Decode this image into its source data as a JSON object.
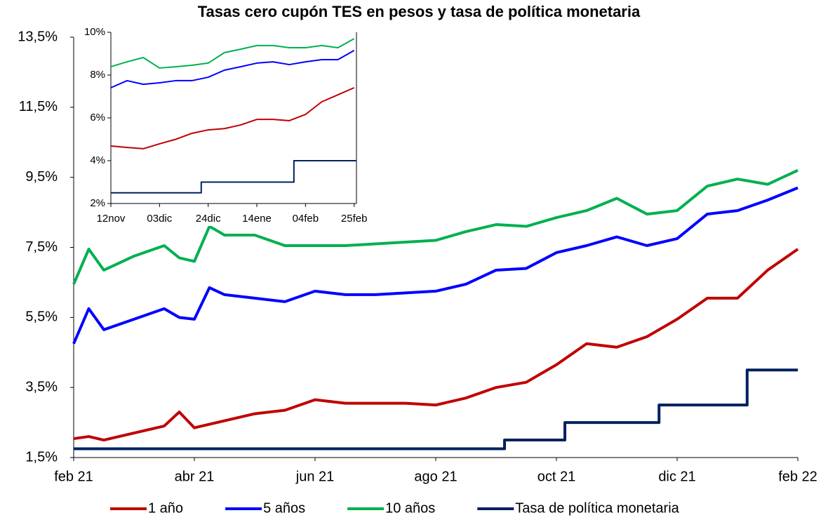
{
  "chart_data": [
    {
      "type": "line",
      "title": "Tasas cero cupón TES en pesos y tasa de política monetaria",
      "x": [
        0,
        0.25,
        0.5,
        1,
        1.5,
        1.75,
        2,
        2.25,
        2.5,
        3,
        3.5,
        4,
        4.5,
        5,
        5.5,
        6,
        6.5,
        7,
        7.5,
        8,
        8.5,
        9,
        9.5,
        10,
        10.5,
        11,
        11.5,
        12
      ],
      "xlim": [
        0,
        12
      ],
      "xticks": [
        {
          "value": 0,
          "label": "feb 21"
        },
        {
          "value": 2,
          "label": "abr 21"
        },
        {
          "value": 4,
          "label": "jun 21"
        },
        {
          "value": 6,
          "label": "ago 21"
        },
        {
          "value": 8,
          "label": "oct 21"
        },
        {
          "value": 10,
          "label": "dic 21"
        },
        {
          "value": 12,
          "label": "feb 22"
        }
      ],
      "ylim": [
        1.5,
        13.5
      ],
      "yticks": [
        {
          "value": 1.5,
          "label": "1,5%"
        },
        {
          "value": 3.5,
          "label": "3,5%"
        },
        {
          "value": 5.5,
          "label": "5,5%"
        },
        {
          "value": 7.5,
          "label": "7,5%"
        },
        {
          "value": 9.5,
          "label": "9,5%"
        },
        {
          "value": 11.5,
          "label": "11,5%"
        },
        {
          "value": 13.5,
          "label": "13,5%"
        }
      ],
      "legend": "bottom",
      "series": [
        {
          "name": "1 año",
          "color": "#c00000",
          "values": [
            2.04,
            2.1,
            2.0,
            2.2,
            2.4,
            2.8,
            2.35,
            2.45,
            2.55,
            2.75,
            2.85,
            3.15,
            3.05,
            3.05,
            3.05,
            3.0,
            3.2,
            3.5,
            3.65,
            4.15,
            4.75,
            4.65,
            4.95,
            5.45,
            6.05,
            6.05,
            6.85,
            7.45
          ]
        },
        {
          "name": "5 años",
          "color": "#0000ff",
          "values": [
            4.75,
            5.75,
            5.15,
            5.45,
            5.75,
            5.5,
            5.45,
            6.35,
            6.15,
            6.05,
            5.95,
            6.25,
            6.15,
            6.15,
            6.2,
            6.25,
            6.45,
            6.85,
            6.9,
            7.35,
            7.55,
            7.8,
            7.55,
            7.75,
            8.45,
            8.55,
            8.85,
            9.2
          ]
        },
        {
          "name": "10 años",
          "color": "#00b050",
          "values": [
            6.45,
            7.45,
            6.85,
            7.25,
            7.55,
            7.2,
            7.1,
            8.1,
            7.85,
            7.85,
            7.55,
            7.55,
            7.55,
            7.6,
            7.65,
            7.7,
            7.95,
            8.15,
            8.1,
            8.35,
            8.55,
            8.9,
            8.45,
            8.55,
            9.25,
            9.45,
            9.3,
            9.7
          ]
        },
        {
          "name": "Tasa de política monetaria",
          "color": "#002060",
          "x": [
            0,
            7.14,
            7.14,
            8.14,
            8.14,
            9.7,
            9.7,
            11.16,
            11.16,
            12
          ],
          "values": [
            1.75,
            1.75,
            2,
            2,
            2.5,
            2.5,
            3,
            3,
            4,
            4
          ]
        }
      ]
    },
    {
      "type": "line",
      "x": [
        0,
        7,
        14,
        21,
        28,
        35,
        42,
        49,
        56,
        63,
        70,
        77,
        84,
        91,
        98,
        105
      ],
      "xlim": [
        0,
        106
      ],
      "xticks": [
        {
          "value": 0,
          "label": "12nov"
        },
        {
          "value": 21,
          "label": "03dic"
        },
        {
          "value": 42,
          "label": "24dic"
        },
        {
          "value": 63,
          "label": "14ene"
        },
        {
          "value": 84,
          "label": "04feb"
        },
        {
          "value": 105,
          "label": "25feb"
        }
      ],
      "ylim": [
        2,
        10
      ],
      "yticks": [
        {
          "value": 2,
          "label": "2%"
        },
        {
          "value": 4,
          "label": "4%"
        },
        {
          "value": 6,
          "label": "6%"
        },
        {
          "value": 8,
          "label": "8%"
        },
        {
          "value": 10,
          "label": "10%"
        }
      ],
      "series": [
        {
          "color": "#c00000",
          "values": [
            4.69,
            4.62,
            4.56,
            4.79,
            5.0,
            5.28,
            5.44,
            5.5,
            5.67,
            5.93,
            5.93,
            5.87,
            6.16,
            6.75,
            7.08,
            7.41
          ]
        },
        {
          "color": "#0000ff",
          "values": [
            7.41,
            7.74,
            7.57,
            7.64,
            7.74,
            7.74,
            7.9,
            8.23,
            8.39,
            8.56,
            8.62,
            8.49,
            8.62,
            8.72,
            8.72,
            9.15
          ]
        },
        {
          "color": "#00b050",
          "values": [
            8.39,
            8.62,
            8.82,
            8.33,
            8.39,
            8.46,
            8.56,
            9.05,
            9.21,
            9.38,
            9.38,
            9.28,
            9.28,
            9.38,
            9.28,
            9.7
          ]
        },
        {
          "color": "#002060",
          "x": [
            0,
            39,
            39,
            79,
            79,
            106
          ],
          "values": [
            2.5,
            2.5,
            3,
            3,
            4,
            4
          ]
        }
      ]
    }
  ]
}
